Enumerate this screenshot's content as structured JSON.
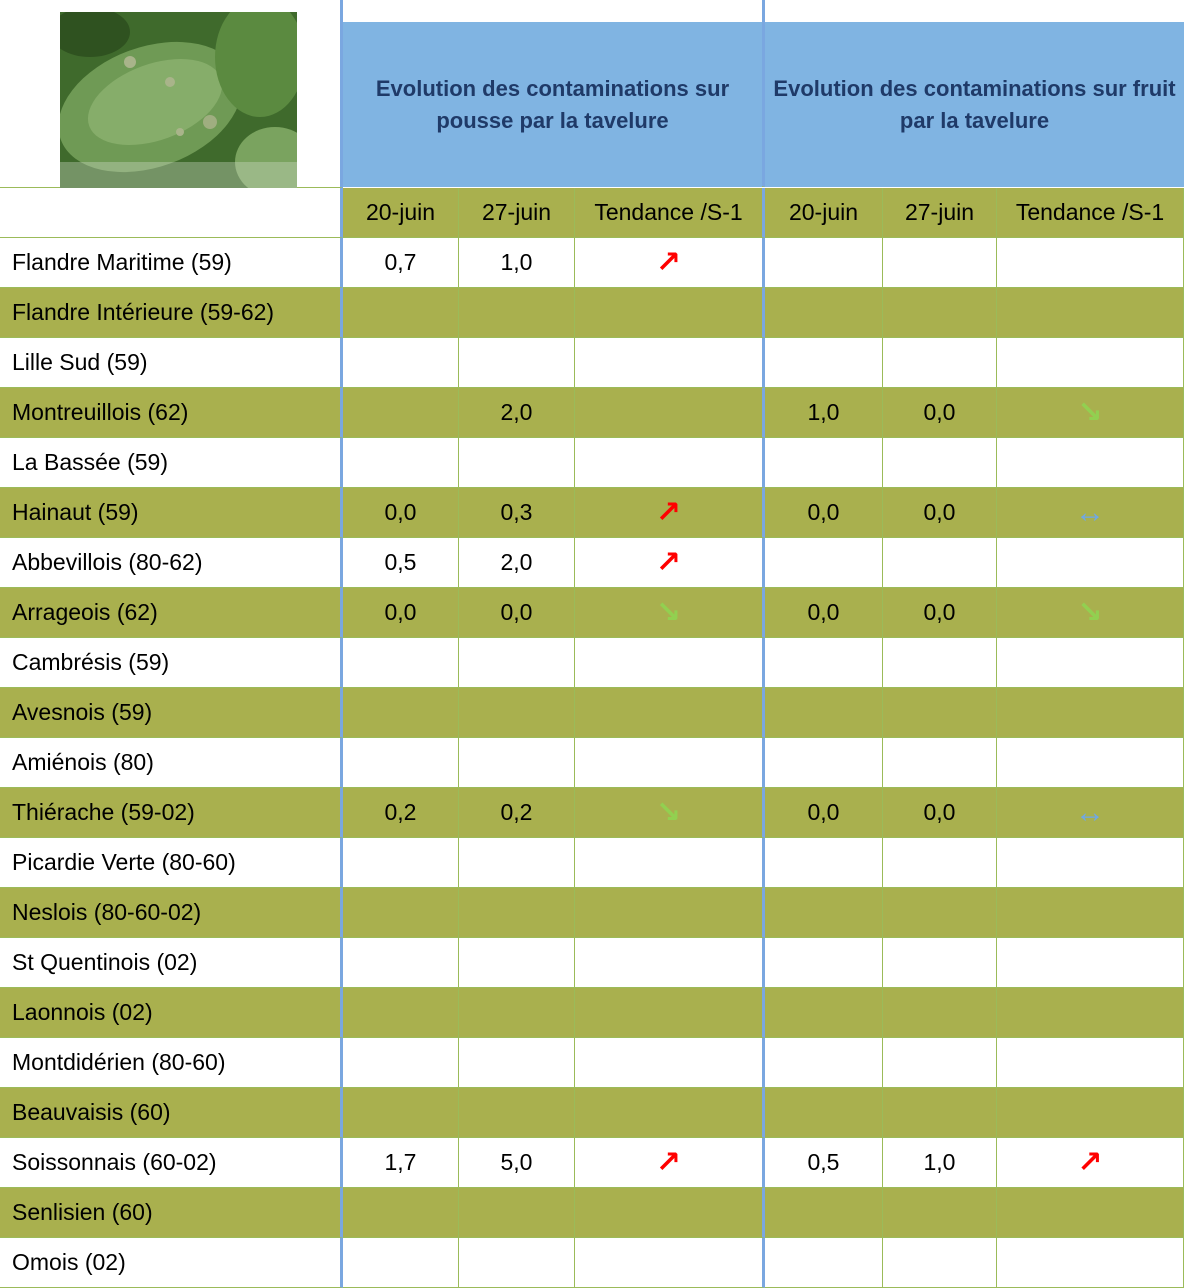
{
  "header": {
    "blocks": [
      "Evolution des contaminations sur pousse par la tavelure",
      "Evolution des contaminations sur fruit par la tavelure"
    ],
    "columns": [
      "20-juin",
      "27-juin",
      "Tendance /S-1",
      "20-juin",
      "27-juin",
      "Tendance /S-1"
    ]
  },
  "table": {
    "rows": [
      {
        "label": "Flandre Maritime (59)",
        "cells": [
          "0,7",
          "1,0",
          {
            "text": "↗",
            "color": "#ff0000"
          },
          null,
          null,
          null
        ]
      },
      {
        "label": "Flandre Intérieure (59-62)",
        "cells": [
          null,
          null,
          null,
          null,
          null,
          null
        ]
      },
      {
        "label": "Lille Sud (59)",
        "cells": [
          null,
          null,
          null,
          null,
          null,
          null
        ]
      },
      {
        "label": "Montreuillois (62)",
        "cells": [
          null,
          "2,0",
          null,
          "1,0",
          "0,0",
          {
            "text": "↘",
            "color": "#92d050"
          }
        ]
      },
      {
        "label": "La Bassée (59)",
        "cells": [
          null,
          null,
          null,
          null,
          null,
          null
        ]
      },
      {
        "label": "Hainaut (59)",
        "cells": [
          "0,0",
          "0,3",
          {
            "text": "↗",
            "color": "#ff0000"
          },
          "0,0",
          "0,0",
          {
            "text": "↔",
            "color": "#6fa8e8"
          }
        ]
      },
      {
        "label": "Abbevillois (80-62)",
        "cells": [
          "0,5",
          "2,0",
          {
            "text": "↗",
            "color": "#ff0000"
          },
          null,
          null,
          null
        ]
      },
      {
        "label": "Arrageois (62)",
        "cells": [
          "0,0",
          "0,0",
          {
            "text": "↘",
            "color": "#92d050"
          },
          "0,0",
          "0,0",
          {
            "text": "↘",
            "color": "#92d050"
          }
        ]
      },
      {
        "label": "Cambrésis (59)",
        "cells": [
          null,
          null,
          null,
          null,
          null,
          null
        ]
      },
      {
        "label": "Avesnois (59)",
        "cells": [
          null,
          null,
          null,
          null,
          null,
          null
        ]
      },
      {
        "label": "Amiénois (80)",
        "cells": [
          null,
          null,
          null,
          null,
          null,
          null
        ]
      },
      {
        "label": "Thiérache (59-02)",
        "cells": [
          "0,2",
          "0,2",
          {
            "text": "↘",
            "color": "#92d050"
          },
          "0,0",
          "0,0",
          {
            "text": "↔",
            "color": "#6fa8e8"
          }
        ]
      },
      {
        "label": "Picardie Verte (80-60)",
        "cells": [
          null,
          null,
          null,
          null,
          null,
          null
        ]
      },
      {
        "label": "Neslois (80-60-02)",
        "cells": [
          null,
          null,
          null,
          null,
          null,
          null
        ]
      },
      {
        "label": "St Quentinois (02)",
        "cells": [
          null,
          null,
          null,
          null,
          null,
          null
        ]
      },
      {
        "label": "Laonnois (02)",
        "cells": [
          null,
          null,
          null,
          null,
          null,
          null
        ]
      },
      {
        "label": "Montdidérien (80-60)",
        "cells": [
          null,
          null,
          null,
          null,
          null,
          null
        ]
      },
      {
        "label": "Beauvaisis (60)",
        "cells": [
          null,
          null,
          null,
          null,
          null,
          null
        ]
      },
      {
        "label": "Soissonnais (60-02)",
        "cells": [
          "1,7",
          "5,0",
          {
            "text": "↗",
            "color": "#ff0000"
          },
          "0,5",
          "1,0",
          {
            "text": "↗",
            "color": "#ff0000"
          }
        ]
      },
      {
        "label": "Senlisien (60)",
        "cells": [
          null,
          null,
          null,
          null,
          null,
          null
        ]
      },
      {
        "label": "Omois (02)",
        "cells": [
          null,
          null,
          null,
          null,
          null,
          null
        ]
      }
    ]
  }
}
